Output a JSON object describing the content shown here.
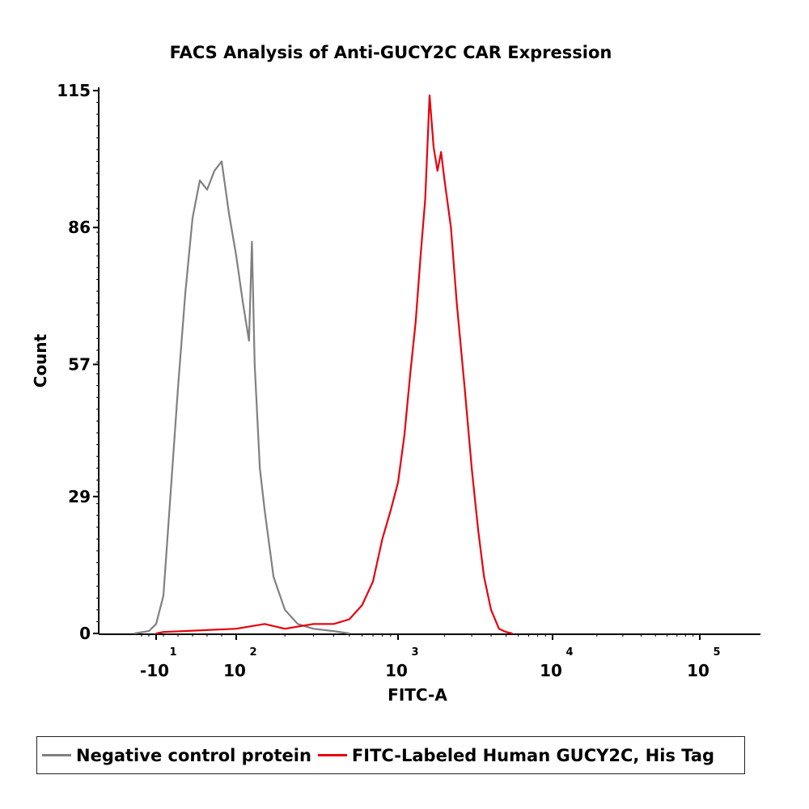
{
  "chart_data": {
    "type": "line",
    "title": "FACS Analysis of Anti-GUCY2C CAR Expression",
    "xlabel": "FITC-A",
    "ylabel": "Count",
    "x_scale": "biexponential",
    "y_ticks": [
      "0",
      "29",
      "57",
      "86",
      "115"
    ],
    "ylim": [
      0,
      115
    ],
    "x_ticks": [
      {
        "base": "-10",
        "exp": "1",
        "value": -10
      },
      {
        "base": "10",
        "exp": "2",
        "value": 100
      },
      {
        "base": "10",
        "exp": "3",
        "value": 1000
      },
      {
        "base": "10",
        "exp": "4",
        "value": 10000
      },
      {
        "base": "10",
        "exp": "5",
        "value": 100000
      }
    ],
    "grid": false,
    "legend_position": "bottom",
    "series": [
      {
        "name": "Negative control protein",
        "color": "#808080",
        "points": [
          [
            -40,
            0
          ],
          [
            -20,
            0.5
          ],
          [
            -10,
            2
          ],
          [
            0,
            8
          ],
          [
            10,
            30
          ],
          [
            20,
            52
          ],
          [
            30,
            72
          ],
          [
            40,
            88
          ],
          [
            50,
            96
          ],
          [
            60,
            94
          ],
          [
            70,
            98
          ],
          [
            80,
            100
          ],
          [
            90,
            89
          ],
          [
            100,
            80
          ],
          [
            110,
            70
          ],
          [
            120,
            62
          ],
          [
            125,
            83
          ],
          [
            130,
            57
          ],
          [
            140,
            35
          ],
          [
            150,
            26
          ],
          [
            170,
            12
          ],
          [
            200,
            5
          ],
          [
            240,
            2
          ],
          [
            300,
            1
          ],
          [
            400,
            0.5
          ],
          [
            500,
            0
          ]
        ]
      },
      {
        "name": "FITC-Labeled Human GUCY2C, His Tag",
        "color": "#e8000b",
        "points": [
          [
            -10,
            0
          ],
          [
            0,
            0.3
          ],
          [
            100,
            1
          ],
          [
            150,
            2
          ],
          [
            200,
            1
          ],
          [
            300,
            2
          ],
          [
            400,
            2
          ],
          [
            500,
            3
          ],
          [
            600,
            6
          ],
          [
            700,
            11
          ],
          [
            800,
            20
          ],
          [
            900,
            26
          ],
          [
            1000,
            32
          ],
          [
            1100,
            42
          ],
          [
            1200,
            55
          ],
          [
            1300,
            66
          ],
          [
            1400,
            80
          ],
          [
            1500,
            92
          ],
          [
            1600,
            114
          ],
          [
            1700,
            103
          ],
          [
            1800,
            98
          ],
          [
            1900,
            102
          ],
          [
            2000,
            96
          ],
          [
            2200,
            86
          ],
          [
            2400,
            70
          ],
          [
            2700,
            52
          ],
          [
            3000,
            35
          ],
          [
            3300,
            22
          ],
          [
            3600,
            12
          ],
          [
            4000,
            5
          ],
          [
            4500,
            1
          ],
          [
            5000,
            0.3
          ],
          [
            5500,
            0
          ]
        ]
      }
    ]
  }
}
